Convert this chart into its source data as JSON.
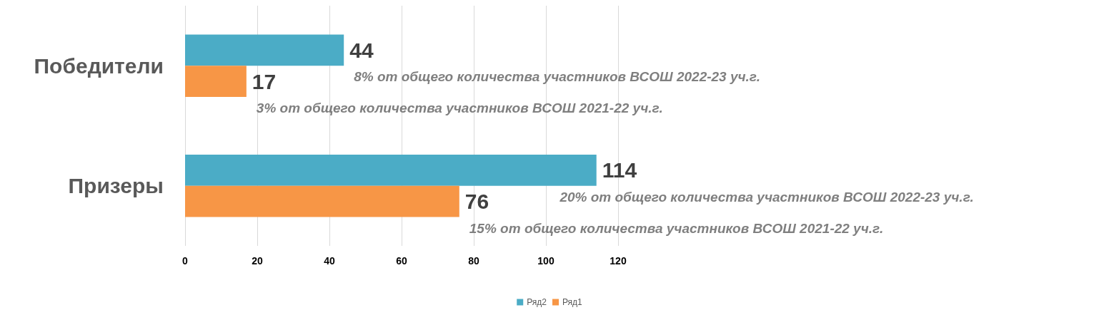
{
  "chart_data": {
    "type": "bar",
    "orientation": "horizontal",
    "categories": [
      "Победители",
      "Призеры"
    ],
    "series": [
      {
        "name": "Ряд2",
        "color": "#4bacc6",
        "values": [
          44,
          114
        ]
      },
      {
        "name": "Ряд1",
        "color": "#f79646",
        "values": [
          17,
          76
        ]
      }
    ],
    "xlim": [
      0,
      120
    ],
    "xticks": [
      0,
      20,
      40,
      60,
      80,
      100,
      120
    ],
    "grid": "x",
    "legend": "bottom",
    "data_labels": true,
    "annotations": [
      {
        "text": "8% от общего количества участников ВСОШ 2022-23 уч.г.",
        "x": 44,
        "y": "Победители"
      },
      {
        "text": "3% от общего количества участников ВСОШ 2021-22 уч.г.",
        "x": 17,
        "y": "Победители"
      },
      {
        "text": "20% от общего количества участников ВСОШ 2022-23 уч.г.",
        "x": 114,
        "y": "Призеры"
      },
      {
        "text": "15% от общего количества участников ВСОШ 2021-22 уч.г.",
        "x": 76,
        "y": "Призеры"
      }
    ]
  }
}
